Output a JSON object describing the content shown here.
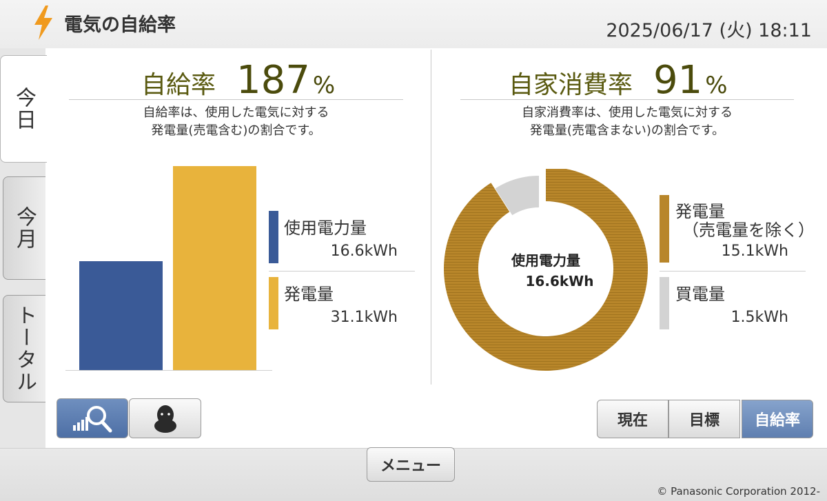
{
  "header": {
    "title": "電気の自給率",
    "datetime": "2025/06/17 (火) 18:11"
  },
  "tabs": [
    {
      "label": "今日",
      "active": true
    },
    {
      "label": "今月",
      "active": false
    },
    {
      "label": "トータル",
      "active": false
    }
  ],
  "self_sufficiency": {
    "label": "自給率",
    "value": "187",
    "unit": "%",
    "desc_line1": "自給率は、使用した電気に対する",
    "desc_line2": "発電量(売電含む)の割合です。",
    "legend": [
      {
        "label": "使用電力量",
        "value": "16.6kWh",
        "color": "#3a5a97"
      },
      {
        "label": "発電量",
        "value": "31.1kWh",
        "color": "#e8b33c"
      }
    ]
  },
  "self_consumption": {
    "label": "自家消費率",
    "value": "91",
    "unit": "%",
    "desc_line1": "自家消費率は、使用した電気に対する",
    "desc_line2": "発電量(売電含まない)の割合です。",
    "center_label": "使用電力量",
    "center_value": "16.6kWh",
    "legend": [
      {
        "label_line1": "発電量",
        "label_line2": "（売電量を除く）",
        "value": "15.1kWh",
        "color": "#b8862a"
      },
      {
        "label_line1": "買電量",
        "label_line2": "",
        "value": "1.5kWh",
        "color": "#d3d3d3"
      }
    ]
  },
  "chart_data": [
    {
      "type": "bar",
      "categories": [
        "使用電力量",
        "発電量"
      ],
      "values": [
        16.6,
        31.1
      ],
      "unit": "kWh",
      "colors": [
        "#3a5a97",
        "#e8b33c"
      ]
    },
    {
      "type": "pie",
      "labels": [
        "発電量（売電量を除く）",
        "買電量"
      ],
      "values": [
        15.1,
        1.5
      ],
      "unit": "kWh",
      "colors": [
        "#b8862a",
        "#d3d3d3"
      ]
    }
  ],
  "view_buttons": [
    {
      "name": "graph-zoom",
      "icon": "chart-magnifier-icon",
      "active": true
    },
    {
      "name": "character",
      "icon": "character-icon",
      "active": false
    }
  ],
  "mode_buttons": [
    {
      "label": "現在",
      "active": false
    },
    {
      "label": "目標",
      "active": false
    },
    {
      "label": "自給率",
      "active": true
    }
  ],
  "footer": {
    "menu_label": "メニュー",
    "copyright": "© Panasonic Corporation 2012-"
  }
}
